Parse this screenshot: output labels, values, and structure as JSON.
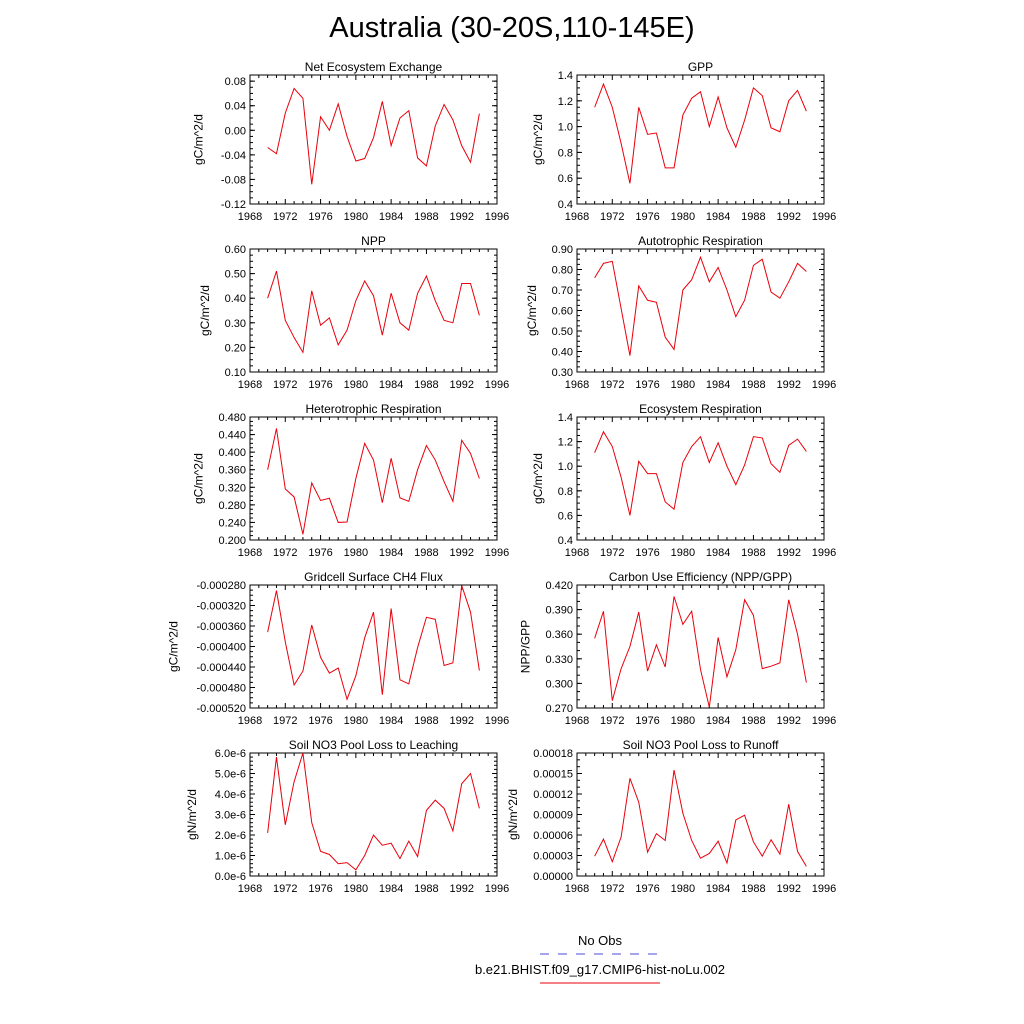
{
  "title": "Australia (30-20S,110-145E)",
  "legend": {
    "no_obs": "No Obs",
    "model": "b.e21.BHIST.f09_g17.CMIP6-hist-noLu.002",
    "no_obs_color": "#4b4bd8",
    "model_color": "#e8000b"
  },
  "chart_data": [
    {
      "type": "line",
      "title": "Net Ecosystem Exchange",
      "ylabel": "gC/m^2/d",
      "xlim": [
        1968,
        1996
      ],
      "xticks": [
        1968,
        1972,
        1976,
        1980,
        1984,
        1988,
        1992,
        1996
      ],
      "ylim": [
        -0.12,
        0.09
      ],
      "yticks": [
        -0.12,
        -0.08,
        -0.04,
        0.0,
        0.04,
        0.08
      ],
      "yticklabels": [
        "-0.12",
        "-0.08",
        "-0.04",
        "0.00",
        "0.04",
        "0.08"
      ],
      "yminor": 0.01,
      "color": "#e8000b",
      "x": [
        1970,
        1971,
        1972,
        1973,
        1974,
        1975,
        1976,
        1977,
        1978,
        1979,
        1980,
        1981,
        1982,
        1983,
        1984,
        1985,
        1986,
        1987,
        1988,
        1989,
        1990,
        1991,
        1992,
        1993,
        1994
      ],
      "y": [
        -0.028,
        -0.038,
        0.028,
        0.068,
        0.052,
        -0.088,
        0.022,
        0.0,
        0.043,
        -0.01,
        -0.05,
        -0.046,
        -0.012,
        0.047,
        -0.025,
        0.02,
        0.032,
        -0.045,
        -0.058,
        0.007,
        0.042,
        0.017,
        -0.025,
        -0.052,
        0.027
      ]
    },
    {
      "type": "line",
      "title": "GPP",
      "ylabel": "gC/m^2/d",
      "xlim": [
        1968,
        1996
      ],
      "xticks": [
        1968,
        1972,
        1976,
        1980,
        1984,
        1988,
        1992,
        1996
      ],
      "ylim": [
        0.4,
        1.4
      ],
      "yticks": [
        0.4,
        0.6,
        0.8,
        1.0,
        1.2,
        1.4
      ],
      "yticklabels": [
        "0.4",
        "0.6",
        "0.8",
        "1.0",
        "1.2",
        "1.4"
      ],
      "yminor": 0.05,
      "color": "#e8000b",
      "x": [
        1970,
        1971,
        1972,
        1973,
        1974,
        1975,
        1976,
        1977,
        1978,
        1979,
        1980,
        1981,
        1982,
        1983,
        1984,
        1985,
        1986,
        1987,
        1988,
        1989,
        1990,
        1991,
        1992,
        1993,
        1994
      ],
      "y": [
        1.15,
        1.33,
        1.15,
        0.87,
        0.56,
        1.15,
        0.94,
        0.95,
        0.68,
        0.68,
        1.09,
        1.22,
        1.27,
        1.0,
        1.23,
        0.99,
        0.84,
        1.05,
        1.3,
        1.24,
        0.99,
        0.96,
        1.2,
        1.28,
        1.12
      ]
    },
    {
      "type": "line",
      "title": "NPP",
      "ylabel": "gC/m^2/d",
      "xlim": [
        1968,
        1996
      ],
      "xticks": [
        1968,
        1972,
        1976,
        1980,
        1984,
        1988,
        1992,
        1996
      ],
      "ylim": [
        0.1,
        0.6
      ],
      "yticks": [
        0.1,
        0.2,
        0.3,
        0.4,
        0.5,
        0.6
      ],
      "yticklabels": [
        "0.10",
        "0.20",
        "0.30",
        "0.40",
        "0.50",
        "0.60"
      ],
      "yminor": 0.025,
      "color": "#e8000b",
      "x": [
        1970,
        1971,
        1972,
        1973,
        1974,
        1975,
        1976,
        1977,
        1978,
        1979,
        1980,
        1981,
        1982,
        1983,
        1984,
        1985,
        1986,
        1987,
        1988,
        1989,
        1990,
        1991,
        1992,
        1993,
        1994
      ],
      "y": [
        0.4,
        0.51,
        0.31,
        0.24,
        0.18,
        0.43,
        0.29,
        0.32,
        0.21,
        0.27,
        0.39,
        0.47,
        0.41,
        0.25,
        0.42,
        0.3,
        0.27,
        0.42,
        0.49,
        0.39,
        0.31,
        0.3,
        0.46,
        0.46,
        0.33
      ]
    },
    {
      "type": "line",
      "title": "Autotrophic Respiration",
      "ylabel": "gC/m^2/d",
      "xlim": [
        1968,
        1996
      ],
      "xticks": [
        1968,
        1972,
        1976,
        1980,
        1984,
        1988,
        1992,
        1996
      ],
      "ylim": [
        0.3,
        0.9
      ],
      "yticks": [
        0.3,
        0.4,
        0.5,
        0.6,
        0.7,
        0.8,
        0.9
      ],
      "yticklabels": [
        "0.30",
        "0.40",
        "0.50",
        "0.60",
        "0.70",
        "0.80",
        "0.90"
      ],
      "yminor": 0.025,
      "color": "#e8000b",
      "x": [
        1970,
        1971,
        1972,
        1973,
        1974,
        1975,
        1976,
        1977,
        1978,
        1979,
        1980,
        1981,
        1982,
        1983,
        1984,
        1985,
        1986,
        1987,
        1988,
        1989,
        1990,
        1991,
        1992,
        1993,
        1994
      ],
      "y": [
        0.76,
        0.83,
        0.84,
        0.61,
        0.38,
        0.72,
        0.65,
        0.64,
        0.47,
        0.41,
        0.7,
        0.75,
        0.86,
        0.74,
        0.81,
        0.7,
        0.57,
        0.65,
        0.82,
        0.85,
        0.69,
        0.66,
        0.74,
        0.83,
        0.79
      ]
    },
    {
      "type": "line",
      "title": "Heterotrophic Respiration",
      "ylabel": "gC/m^2/d",
      "xlim": [
        1968,
        1996
      ],
      "xticks": [
        1968,
        1972,
        1976,
        1980,
        1984,
        1988,
        1992,
        1996
      ],
      "ylim": [
        0.2,
        0.48
      ],
      "yticks": [
        0.2,
        0.24,
        0.28,
        0.32,
        0.36,
        0.4,
        0.44,
        0.48
      ],
      "yticklabels": [
        "0.200",
        "0.240",
        "0.280",
        "0.320",
        "0.360",
        "0.400",
        "0.440",
        "0.480"
      ],
      "yminor": 0.01,
      "color": "#e8000b",
      "x": [
        1970,
        1971,
        1972,
        1973,
        1974,
        1975,
        1976,
        1977,
        1978,
        1979,
        1980,
        1981,
        1982,
        1983,
        1984,
        1985,
        1986,
        1987,
        1988,
        1989,
        1990,
        1991,
        1992,
        1993,
        1994
      ],
      "y": [
        0.36,
        0.454,
        0.316,
        0.298,
        0.213,
        0.33,
        0.29,
        0.295,
        0.24,
        0.241,
        0.34,
        0.42,
        0.382,
        0.285,
        0.386,
        0.296,
        0.288,
        0.36,
        0.415,
        0.382,
        0.333,
        0.288,
        0.427,
        0.397,
        0.34
      ]
    },
    {
      "type": "line",
      "title": "Ecosystem Respiration",
      "ylabel": "gC/m^2/d",
      "xlim": [
        1968,
        1996
      ],
      "xticks": [
        1968,
        1972,
        1976,
        1980,
        1984,
        1988,
        1992,
        1996
      ],
      "ylim": [
        0.4,
        1.4
      ],
      "yticks": [
        0.4,
        0.6,
        0.8,
        1.0,
        1.2,
        1.4
      ],
      "yticklabels": [
        "0.4",
        "0.6",
        "0.8",
        "1.0",
        "1.2",
        "1.4"
      ],
      "yminor": 0.05,
      "color": "#e8000b",
      "x": [
        1970,
        1971,
        1972,
        1973,
        1974,
        1975,
        1976,
        1977,
        1978,
        1979,
        1980,
        1981,
        1982,
        1983,
        1984,
        1985,
        1986,
        1987,
        1988,
        1989,
        1990,
        1991,
        1992,
        1993,
        1994
      ],
      "y": [
        1.11,
        1.28,
        1.16,
        0.91,
        0.6,
        1.04,
        0.94,
        0.94,
        0.71,
        0.65,
        1.03,
        1.16,
        1.24,
        1.03,
        1.19,
        1.0,
        0.85,
        1.01,
        1.24,
        1.23,
        1.02,
        0.95,
        1.17,
        1.22,
        1.12
      ]
    },
    {
      "type": "line",
      "title": "Gridcell Surface CH4 Flux",
      "ylabel": "gC/m^2/d",
      "xlim": [
        1968,
        1996
      ],
      "xticks": [
        1968,
        1972,
        1976,
        1980,
        1984,
        1988,
        1992,
        1996
      ],
      "ylim": [
        -0.00052,
        -0.00028
      ],
      "yticks": [
        -0.00052,
        -0.00048,
        -0.00044,
        -0.0004,
        -0.00036,
        -0.00032,
        -0.00028
      ],
      "yticklabels": [
        "-0.000520",
        "-0.000480",
        "-0.000440",
        "-0.000400",
        "-0.000360",
        "-0.000320",
        "-0.000280"
      ],
      "yminor": 1e-05,
      "color": "#e8000b",
      "x": [
        1970,
        1971,
        1972,
        1973,
        1974,
        1975,
        1976,
        1977,
        1978,
        1979,
        1980,
        1981,
        1982,
        1983,
        1984,
        1985,
        1986,
        1987,
        1988,
        1989,
        1990,
        1991,
        1992,
        1993,
        1994
      ],
      "y": [
        -0.000372,
        -0.000291,
        -0.000391,
        -0.000475,
        -0.000448,
        -0.000358,
        -0.000421,
        -0.000452,
        -0.000442,
        -0.000503,
        -0.000457,
        -0.000383,
        -0.000333,
        -0.000494,
        -0.000326,
        -0.000465,
        -0.000473,
        -0.000402,
        -0.000343,
        -0.000347,
        -0.000437,
        -0.000432,
        -0.000281,
        -0.000333,
        -0.000447
      ]
    },
    {
      "type": "line",
      "title": "Carbon Use Efficiency (NPP/GPP)",
      "ylabel": "NPP/GPP",
      "xlim": [
        1968,
        1996
      ],
      "xticks": [
        1968,
        1972,
        1976,
        1980,
        1984,
        1988,
        1992,
        1996
      ],
      "ylim": [
        0.27,
        0.42
      ],
      "yticks": [
        0.27,
        0.3,
        0.33,
        0.36,
        0.39,
        0.42
      ],
      "yticklabels": [
        "0.270",
        "0.300",
        "0.330",
        "0.360",
        "0.390",
        "0.420"
      ],
      "yminor": 0.01,
      "color": "#e8000b",
      "x": [
        1970,
        1971,
        1972,
        1973,
        1974,
        1975,
        1976,
        1977,
        1978,
        1979,
        1980,
        1981,
        1982,
        1983,
        1984,
        1985,
        1986,
        1987,
        1988,
        1989,
        1990,
        1991,
        1992,
        1993,
        1994
      ],
      "y": [
        0.355,
        0.388,
        0.279,
        0.318,
        0.345,
        0.387,
        0.315,
        0.347,
        0.32,
        0.406,
        0.372,
        0.388,
        0.317,
        0.271,
        0.356,
        0.308,
        0.341,
        0.402,
        0.383,
        0.318,
        0.321,
        0.325,
        0.402,
        0.36,
        0.301
      ]
    },
    {
      "type": "line",
      "title": "Soil NO3 Pool Loss to Leaching",
      "ylabel": "gN/m^2/d",
      "xlim": [
        1968,
        1996
      ],
      "xticks": [
        1968,
        1972,
        1976,
        1980,
        1984,
        1988,
        1992,
        1996
      ],
      "ylim": [
        0.0,
        6e-06
      ],
      "yticks": [
        0.0,
        1e-06,
        2e-06,
        3e-06,
        4e-06,
        5e-06,
        6e-06
      ],
      "yticklabels": [
        "0.0e-6",
        "1.0e-6",
        "2.0e-6",
        "3.0e-6",
        "4.0e-6",
        "5.0e-6",
        "6.0e-6"
      ],
      "yminor": 2e-07,
      "color": "#e8000b",
      "x": [
        1970,
        1971,
        1972,
        1973,
        1974,
        1975,
        1976,
        1977,
        1978,
        1979,
        1980,
        1981,
        1982,
        1983,
        1984,
        1985,
        1986,
        1987,
        1988,
        1989,
        1990,
        1991,
        1992,
        1993,
        1994
      ],
      "y": [
        2.1e-06,
        5.8e-06,
        2.5e-06,
        4.6e-06,
        6e-06,
        2.6e-06,
        1.2e-06,
        1.05e-06,
        6e-07,
        6.5e-07,
        3e-07,
        1e-06,
        2e-06,
        1.5e-06,
        1.6e-06,
        8.5e-07,
        1.7e-06,
        9.5e-07,
        3.2e-06,
        3.7e-06,
        3.3e-06,
        2.2e-06,
        4.5e-06,
        5e-06,
        3.3e-06
      ]
    },
    {
      "type": "line",
      "title": "Soil NO3 Pool Loss to Runoff",
      "ylabel": "gN/m^2/d",
      "xlim": [
        1968,
        1996
      ],
      "xticks": [
        1968,
        1972,
        1976,
        1980,
        1984,
        1988,
        1992,
        1996
      ],
      "ylim": [
        0.0,
        0.00018
      ],
      "yticks": [
        0.0,
        3e-05,
        6e-05,
        9e-05,
        0.00012,
        0.00015,
        0.00018
      ],
      "yticklabels": [
        "0.00000",
        "0.00003",
        "0.00006",
        "0.00009",
        "0.00012",
        "0.00015",
        "0.00018"
      ],
      "yminor": 1e-05,
      "color": "#e8000b",
      "x": [
        1970,
        1971,
        1972,
        1973,
        1974,
        1975,
        1976,
        1977,
        1978,
        1979,
        1980,
        1981,
        1982,
        1983,
        1984,
        1985,
        1986,
        1987,
        1988,
        1989,
        1990,
        1991,
        1992,
        1993,
        1994
      ],
      "y": [
        2.9e-05,
        5.4e-05,
        2.1e-05,
        5.7e-05,
        0.000143,
        0.000108,
        3.5e-05,
        6.2e-05,
        5.2e-05,
        0.000155,
        9.2e-05,
        5.2e-05,
        2.6e-05,
        3.3e-05,
        5.1e-05,
        1.9e-05,
        8.2e-05,
        8.9e-05,
        5e-05,
        2.9e-05,
        5.3e-05,
        3.2e-05,
        0.000105,
        3.6e-05,
        1.4e-05
      ]
    }
  ]
}
